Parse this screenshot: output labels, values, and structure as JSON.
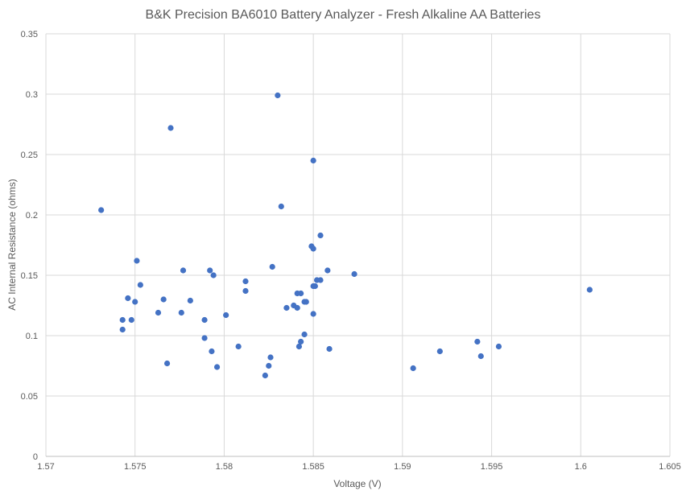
{
  "chart_data": {
    "type": "scatter",
    "title": "B&K Precision BA6010 Battery Analyzer - Fresh Alkaline AA Batteries",
    "xlabel": "Voltage (V)",
    "ylabel": "AC Internal Resistance (ohms)",
    "xlim": [
      1.57,
      1.605
    ],
    "ylim": [
      0,
      0.35
    ],
    "xticks": [
      "1.57",
      "1.575",
      "1.58",
      "1.585",
      "1.59",
      "1.595",
      "1.6",
      "1.605"
    ],
    "yticks": [
      "0",
      "0.05",
      "0.1",
      "0.15",
      "0.2",
      "0.25",
      "0.3",
      "0.35"
    ],
    "grid": true,
    "color": "#4472C4",
    "points": [
      [
        1.5731,
        0.204
      ],
      [
        1.577,
        0.272
      ],
      [
        1.583,
        0.299
      ],
      [
        1.585,
        0.245
      ],
      [
        1.5832,
        0.207
      ],
      [
        1.5854,
        0.183
      ],
      [
        1.5849,
        0.174
      ],
      [
        1.585,
        0.172
      ],
      [
        1.5827,
        0.157
      ],
      [
        1.5751,
        0.162
      ],
      [
        1.5777,
        0.154
      ],
      [
        1.5792,
        0.154
      ],
      [
        1.5794,
        0.15
      ],
      [
        1.5858,
        0.154
      ],
      [
        1.5873,
        0.151
      ],
      [
        1.5753,
        0.142
      ],
      [
        1.5812,
        0.145
      ],
      [
        1.5812,
        0.137
      ],
      [
        1.5852,
        0.146
      ],
      [
        1.5854,
        0.146
      ],
      [
        1.585,
        0.141
      ],
      [
        1.5851,
        0.141
      ],
      [
        1.5841,
        0.135
      ],
      [
        1.5843,
        0.135
      ],
      [
        1.5845,
        0.128
      ],
      [
        1.5846,
        0.128
      ],
      [
        1.5839,
        0.125
      ],
      [
        1.5841,
        0.123
      ],
      [
        1.5835,
        0.123
      ],
      [
        1.585,
        0.118
      ],
      [
        1.5746,
        0.131
      ],
      [
        1.575,
        0.128
      ],
      [
        1.5766,
        0.13
      ],
      [
        1.5781,
        0.129
      ],
      [
        1.5763,
        0.119
      ],
      [
        1.5776,
        0.119
      ],
      [
        1.5743,
        0.113
      ],
      [
        1.5748,
        0.113
      ],
      [
        1.5743,
        0.105
      ],
      [
        1.5789,
        0.113
      ],
      [
        1.5801,
        0.117
      ],
      [
        1.5789,
        0.098
      ],
      [
        1.5845,
        0.101
      ],
      [
        1.5793,
        0.087
      ],
      [
        1.5808,
        0.091
      ],
      [
        1.5843,
        0.095
      ],
      [
        1.5842,
        0.091
      ],
      [
        1.5859,
        0.089
      ],
      [
        1.5768,
        0.077
      ],
      [
        1.5796,
        0.074
      ],
      [
        1.5826,
        0.082
      ],
      [
        1.5825,
        0.075
      ],
      [
        1.5823,
        0.067
      ],
      [
        1.5906,
        0.073
      ],
      [
        1.5921,
        0.087
      ],
      [
        1.5942,
        0.095
      ],
      [
        1.5944,
        0.083
      ],
      [
        1.5954,
        0.091
      ],
      [
        1.6005,
        0.138
      ]
    ]
  }
}
